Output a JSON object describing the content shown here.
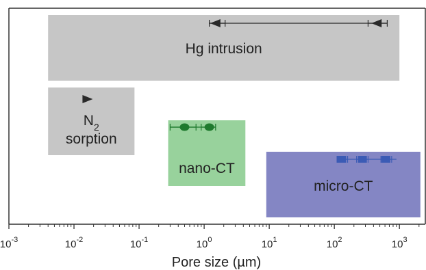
{
  "chart_data": {
    "type": "range",
    "xlabel": "Pore size (µm)",
    "x_scale": "log",
    "xlim": [
      0.001,
      2500
    ],
    "ylabel": "",
    "x_ticks": [
      {
        "value": 0.001,
        "base": "10",
        "exp": "-3"
      },
      {
        "value": 0.01,
        "base": "10",
        "exp": "-2"
      },
      {
        "value": 0.1,
        "base": "10",
        "exp": "-1"
      },
      {
        "value": 1,
        "base": "10",
        "exp": "0"
      },
      {
        "value": 10,
        "base": "10",
        "exp": "1"
      },
      {
        "value": 100,
        "base": "10",
        "exp": "2"
      },
      {
        "value": 1000,
        "base": "10",
        "exp": "3"
      }
    ],
    "ranges": [
      {
        "label": "Hg intrusion",
        "x_range": [
          0.004,
          1000
        ],
        "color": "#c6c6c6",
        "text_color": "#222222",
        "markers": [
          {
            "x": 1.5,
            "x_err": [
              1.2,
              2.1
            ],
            "symbol": "triangle-left"
          },
          {
            "x": 450,
            "x_err": [
              330,
              650
            ],
            "symbol": "triangle-left"
          }
        ],
        "marker_color": "#2a2a2a",
        "connector": [
          1.2,
          650
        ]
      },
      {
        "label": "N₂ sorption",
        "label_main": "N",
        "label_sub": "2",
        "label_line2": "sorption",
        "x_range": [
          0.004,
          0.085
        ],
        "color": "#c6c6c6",
        "text_color": "#222222",
        "markers": [
          {
            "x": 0.016,
            "symbol": "triangle-right"
          }
        ],
        "marker_color": "#2a2a2a"
      },
      {
        "label": "nano-CT",
        "x_range": [
          0.28,
          4.3
        ],
        "color": "#98d29c",
        "text_color": "#222222",
        "markers": [
          {
            "x": 0.5,
            "x_err": [
              0.3,
              0.75
            ],
            "symbol": "circle"
          },
          {
            "x": 1.2,
            "x_err": [
              0.9,
              1.5
            ],
            "symbol": "circle"
          }
        ],
        "marker_color": "#1f7a2e",
        "connector": [
          0.3,
          1.5
        ]
      },
      {
        "label": "micro-CT",
        "x_range": [
          9,
          2100
        ],
        "color": "#8486c4",
        "text_color": "#222222",
        "markers": [
          {
            "x": 130,
            "x_err": [
              110,
              160
            ],
            "symbol": "square"
          },
          {
            "x": 270,
            "x_err": [
              220,
              330
            ],
            "symbol": "square"
          },
          {
            "x": 620,
            "x_err": [
              520,
              760
            ],
            "symbol": "square"
          }
        ],
        "marker_color": "#3b5bb5",
        "connector": [
          110,
          900
        ]
      }
    ]
  }
}
